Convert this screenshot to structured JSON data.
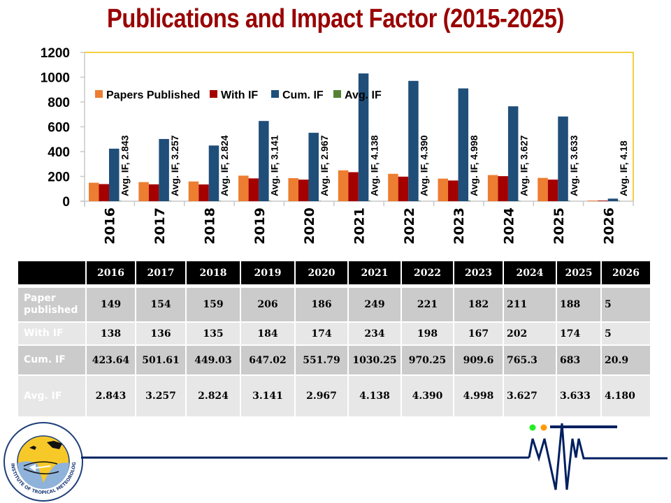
{
  "page": {
    "title": "Publications and Impact Factor (2015-2025)"
  },
  "chart_data": {
    "type": "bar",
    "title": "Publications and Impact Factor (2015-2025)",
    "xlabel": "",
    "ylabel": "",
    "ylim": [
      0,
      1200
    ],
    "yticks": [
      0,
      200,
      400,
      600,
      800,
      1000,
      1200
    ],
    "grid": false,
    "legend_placement": "top-left inside plot",
    "categories": [
      "2016",
      "2017",
      "2018",
      "2019",
      "2020",
      "2021",
      "2022",
      "2023",
      "2024",
      "2025",
      "2026"
    ],
    "series": [
      {
        "name": "Papers Published",
        "color": "#ED7D31",
        "values": [
          149,
          154,
          159,
          206,
          186,
          249,
          221,
          182,
          211,
          188,
          5
        ]
      },
      {
        "name": "With IF",
        "color": "#A50000",
        "values": [
          138,
          136,
          135,
          184,
          174,
          234,
          198,
          167,
          202,
          174,
          5
        ]
      },
      {
        "name": "Cum. IF",
        "color": "#1F4E79",
        "values": [
          423.64,
          501.61,
          449.03,
          647.02,
          551.79,
          1030.25,
          970.25,
          909.6,
          765.3,
          683,
          20.9
        ]
      },
      {
        "name": "Avg. IF",
        "color": "#548235",
        "values": [
          2.843,
          3.257,
          2.824,
          3.141,
          2.967,
          4.138,
          4.39,
          4.998,
          3.627,
          3.633,
          4.18
        ]
      }
    ],
    "data_labels": [
      "Avg. IF, 2.843",
      "Avg. IF, 3.257",
      "Avg. IF, 2.824",
      "Avg. IF, 3.141",
      "Avg. IF, 2.967",
      "Avg. IF, 4.138",
      "Avg. IF, 4.390",
      "Avg. IF, 4.998",
      "Avg. IF, 3.627",
      "Avg. IF, 3.633",
      "Avg. IF, 4.18"
    ],
    "plot_border_color": "#F2C200",
    "axis_color": "#C8C8C8"
  },
  "table": {
    "headers": [
      "",
      "2016",
      "2017",
      "2018",
      "2019",
      "2020",
      "2021",
      "2022",
      "2023",
      "2024",
      "2025",
      "2026"
    ],
    "rows": [
      {
        "label": "Paper published",
        "label_lines": [
          "Paper",
          "published"
        ],
        "values": [
          "149",
          "154",
          "159",
          "206",
          "186",
          "249",
          "221",
          "182",
          "211",
          "188",
          "5"
        ]
      },
      {
        "label": "With IF",
        "values": [
          "138",
          "136",
          "135",
          "184",
          "174",
          "234",
          "198",
          "167",
          "202",
          "174",
          "5"
        ]
      },
      {
        "label": "Cum. IF",
        "values": [
          "423.64",
          "501.61",
          "449.03",
          "647.02",
          "551.79",
          "1030.25",
          "970.25",
          "909.6",
          "765.3",
          "683",
          "20.9"
        ]
      },
      {
        "label": "Avg. IF",
        "values": [
          "2.843",
          "3.257",
          "2.824",
          "3.141",
          "2.967",
          "4.138",
          "4.390",
          "4.998",
          "3.627",
          "3.633",
          "4.180"
        ]
      }
    ]
  },
  "footer": {
    "logo": "iitm-logo",
    "logo_text_bottom": "INDIAN INSTITUTE OF TROPICAL METEOROLOGY PUNE",
    "decor": "seismograph-signal",
    "dot_colors": [
      "#22EE22",
      "#FF9900"
    ],
    "line_color": "#002060"
  }
}
